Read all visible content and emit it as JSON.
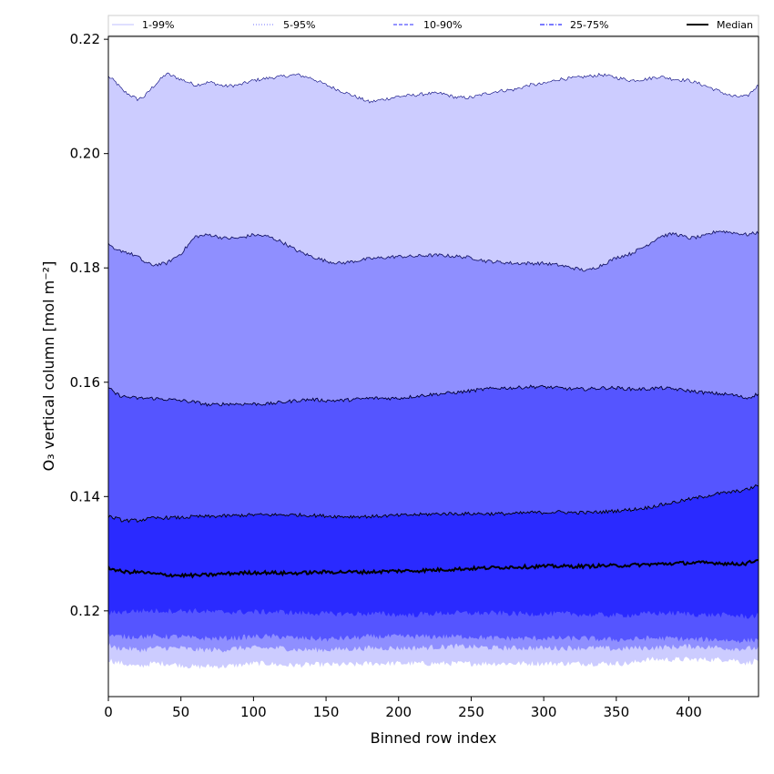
{
  "chart_data": {
    "type": "area",
    "xlabel": "Binned row index",
    "ylabel": "O₃ vertical column [mol m⁻²]",
    "xlim": [
      0,
      448
    ],
    "ylim": [
      0.105,
      0.2205
    ],
    "x_ticks": [
      0,
      50,
      100,
      150,
      200,
      250,
      300,
      350,
      400
    ],
    "y_ticks": [
      0.12,
      0.14,
      0.16,
      0.18,
      0.2,
      0.22
    ],
    "y_tick_labels": [
      "0.12",
      "0.14",
      "0.16",
      "0.18",
      "0.20",
      "0.22"
    ],
    "legend_position": "top",
    "x": [
      0,
      5,
      10,
      20,
      25,
      30,
      40,
      50,
      60,
      70,
      80,
      90,
      100,
      110,
      120,
      130,
      140,
      150,
      160,
      170,
      180,
      190,
      200,
      210,
      220,
      230,
      240,
      250,
      260,
      270,
      280,
      290,
      300,
      310,
      320,
      330,
      340,
      350,
      360,
      370,
      380,
      390,
      400,
      410,
      420,
      430,
      440,
      448
    ],
    "bands": [
      {
        "name": "1-99%",
        "color": "#ccccff",
        "lower": [
          0.1115,
          0.111,
          0.1108,
          0.1102,
          0.1105,
          0.1108,
          0.1108,
          0.1105,
          0.1102,
          0.1103,
          0.1103,
          0.1105,
          0.1108,
          0.1108,
          0.1105,
          0.1105,
          0.1106,
          0.1106,
          0.1106,
          0.1106,
          0.1108,
          0.1108,
          0.1108,
          0.1108,
          0.1108,
          0.1108,
          0.1108,
          0.1108,
          0.1108,
          0.1108,
          0.1108,
          0.1108,
          0.1108,
          0.1108,
          0.1108,
          0.1108,
          0.1108,
          0.1108,
          0.1108,
          0.1115,
          0.1115,
          0.1115,
          0.1115,
          0.1115,
          0.1115,
          0.1115,
          0.1108,
          0.1115
        ],
        "upper": [
          0.2135,
          0.2125,
          0.211,
          0.2095,
          0.21,
          0.2115,
          0.214,
          0.213,
          0.212,
          0.2125,
          0.2118,
          0.212,
          0.2128,
          0.2132,
          0.2135,
          0.2138,
          0.2132,
          0.212,
          0.211,
          0.21,
          0.209,
          0.2095,
          0.21,
          0.2102,
          0.2105,
          0.2105,
          0.2098,
          0.2098,
          0.2105,
          0.211,
          0.2112,
          0.212,
          0.2122,
          0.213,
          0.2132,
          0.2135,
          0.2138,
          0.2133,
          0.2128,
          0.213,
          0.2135,
          0.213,
          0.2128,
          0.212,
          0.211,
          0.21,
          0.21,
          0.212
        ]
      },
      {
        "name": "5-95%",
        "color": "#8f8fff",
        "lower": [
          0.114,
          0.1135,
          0.1135,
          0.1132,
          0.1132,
          0.1135,
          0.1135,
          0.1135,
          0.1132,
          0.1132,
          0.1132,
          0.1135,
          0.1135,
          0.1135,
          0.1135,
          0.1132,
          0.1132,
          0.1132,
          0.1133,
          0.1134,
          0.1135,
          0.1135,
          0.1135,
          0.1135,
          0.1136,
          0.1137,
          0.1138,
          0.1137,
          0.1136,
          0.1135,
          0.1135,
          0.1135,
          0.1135,
          0.1135,
          0.1135,
          0.1135,
          0.1135,
          0.1133,
          0.1135,
          0.1135,
          0.1136,
          0.1137,
          0.1138,
          0.1137,
          0.1136,
          0.1134,
          0.1134,
          0.1135
        ],
        "upper": [
          0.184,
          0.183,
          0.183,
          0.182,
          0.181,
          0.1805,
          0.1808,
          0.1825,
          0.1855,
          0.1858,
          0.1852,
          0.1852,
          0.1858,
          0.1855,
          0.1845,
          0.183,
          0.182,
          0.1812,
          0.1808,
          0.1812,
          0.1816,
          0.1818,
          0.182,
          0.182,
          0.1822,
          0.1822,
          0.182,
          0.1818,
          0.1812,
          0.181,
          0.1808,
          0.1808,
          0.1808,
          0.1805,
          0.18,
          0.1795,
          0.1805,
          0.1818,
          0.1825,
          0.1838,
          0.1855,
          0.186,
          0.1852,
          0.1855,
          0.1865,
          0.1862,
          0.1858,
          0.1862
        ]
      },
      {
        "name": "10-90%",
        "color": "#5555ff",
        "lower": [
          0.116,
          0.1155,
          0.1155,
          0.1155,
          0.1155,
          0.1155,
          0.1155,
          0.1155,
          0.1152,
          0.1152,
          0.1152,
          0.1153,
          0.1155,
          0.1155,
          0.1155,
          0.1152,
          0.1152,
          0.115,
          0.1152,
          0.1153,
          0.1155,
          0.1155,
          0.1155,
          0.1155,
          0.1155,
          0.1155,
          0.1155,
          0.1155,
          0.1153,
          0.1152,
          0.1152,
          0.1152,
          0.1152,
          0.1152,
          0.1152,
          0.1152,
          0.115,
          0.115,
          0.115,
          0.1152,
          0.1152,
          0.1152,
          0.115,
          0.115,
          0.115,
          0.1148,
          0.1148,
          0.115
        ],
        "upper": [
          0.159,
          0.158,
          0.1575,
          0.1572,
          0.1572,
          0.1572,
          0.157,
          0.1568,
          0.1565,
          0.156,
          0.1562,
          0.1562,
          0.1562,
          0.1562,
          0.1565,
          0.1568,
          0.157,
          0.1568,
          0.1568,
          0.157,
          0.1572,
          0.1572,
          0.1572,
          0.1575,
          0.1578,
          0.158,
          0.1582,
          0.1585,
          0.1588,
          0.159,
          0.159,
          0.1592,
          0.1592,
          0.159,
          0.1588,
          0.1588,
          0.159,
          0.159,
          0.1588,
          0.1588,
          0.159,
          0.1588,
          0.1585,
          0.1582,
          0.158,
          0.1578,
          0.1572,
          0.158
        ]
      },
      {
        "name": "25-75%",
        "color": "#2a2aff",
        "lower": [
          0.1195,
          0.1198,
          0.1198,
          0.12,
          0.12,
          0.12,
          0.12,
          0.12,
          0.12,
          0.1198,
          0.1198,
          0.1198,
          0.1198,
          0.1198,
          0.1198,
          0.1196,
          0.1196,
          0.1195,
          0.1195,
          0.1195,
          0.1195,
          0.1195,
          0.1193,
          0.1193,
          0.1195,
          0.1196,
          0.1196,
          0.1196,
          0.1196,
          0.1196,
          0.1195,
          0.1195,
          0.1195,
          0.1195,
          0.1195,
          0.1193,
          0.1193,
          0.1192,
          0.1193,
          0.1195,
          0.1196,
          0.1196,
          0.1195,
          0.1193,
          0.1193,
          0.1192,
          0.119,
          0.1192
        ],
        "upper": [
          0.1365,
          0.1362,
          0.1358,
          0.1358,
          0.136,
          0.1362,
          0.1363,
          0.1363,
          0.1365,
          0.1365,
          0.1366,
          0.1367,
          0.1368,
          0.1368,
          0.1368,
          0.1368,
          0.1367,
          0.1366,
          0.1365,
          0.1365,
          0.1365,
          0.1366,
          0.1367,
          0.1368,
          0.1369,
          0.137,
          0.137,
          0.137,
          0.137,
          0.137,
          0.137,
          0.1372,
          0.1372,
          0.1373,
          0.1372,
          0.1372,
          0.1373,
          0.1375,
          0.1377,
          0.138,
          0.1385,
          0.139,
          0.1395,
          0.14,
          0.1405,
          0.1408,
          0.1412,
          0.142
        ]
      }
    ],
    "series": [
      {
        "name": "Median",
        "color": "#000000",
        "values": [
          0.1275,
          0.1272,
          0.1268,
          0.1268,
          0.1267,
          0.1265,
          0.1263,
          0.1262,
          0.1262,
          0.1263,
          0.1265,
          0.1266,
          0.1267,
          0.1267,
          0.1266,
          0.1266,
          0.1267,
          0.1268,
          0.1268,
          0.1268,
          0.1268,
          0.1269,
          0.127,
          0.127,
          0.1271,
          0.1272,
          0.1273,
          0.1274,
          0.1275,
          0.1276,
          0.1277,
          0.1277,
          0.1278,
          0.1278,
          0.1278,
          0.1278,
          0.1279,
          0.1279,
          0.128,
          0.1281,
          0.1282,
          0.1283,
          0.1284,
          0.1284,
          0.1284,
          0.1282,
          0.1283,
          0.129
        ]
      }
    ],
    "legend": [
      {
        "label": "1-99%",
        "color": "#ccccff",
        "style": "solid"
      },
      {
        "label": "5-95%",
        "color": "#8f8fff",
        "style": "dotted"
      },
      {
        "label": "10-90%",
        "color": "#5555ff",
        "style": "dashed"
      },
      {
        "label": "25-75%",
        "color": "#2a2aff",
        "style": "dashdot"
      },
      {
        "label": "Median",
        "color": "#000000",
        "style": "solid"
      }
    ]
  }
}
